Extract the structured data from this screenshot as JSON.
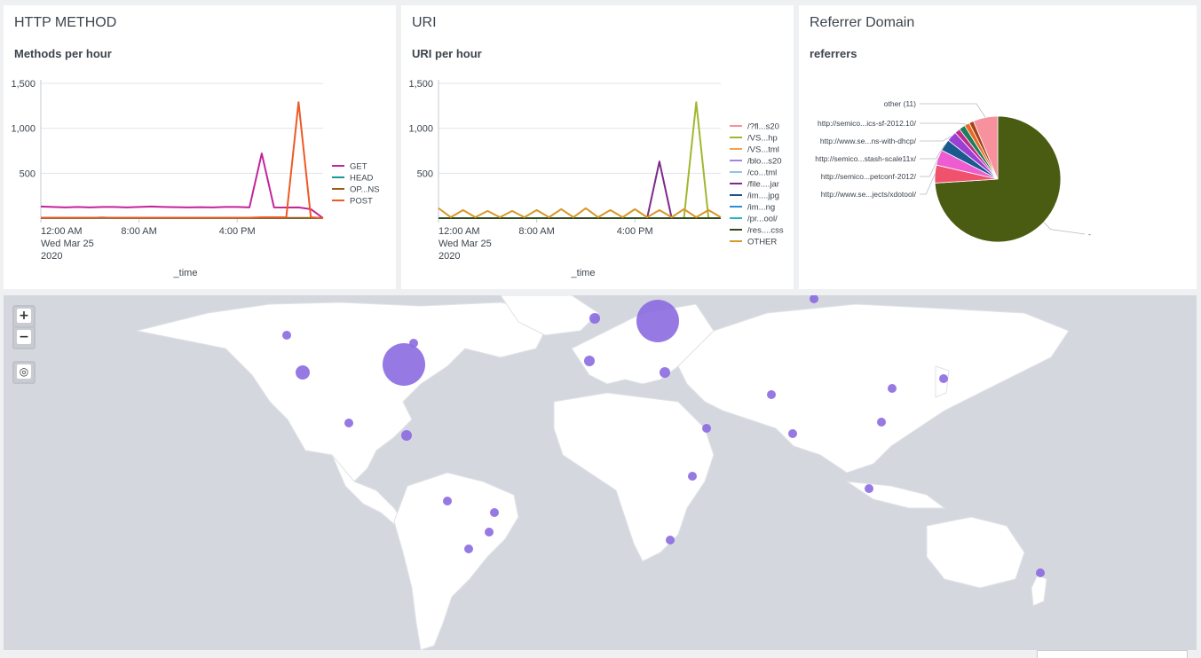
{
  "panels": {
    "methods": {
      "title": "HTTP METHOD",
      "subtitle": "Methods per hour",
      "xlabel": "_time",
      "xticks": [
        "12:00 AM",
        "8:00 AM",
        "4:00 PM"
      ],
      "xdate": [
        "Wed Mar 25",
        "2020"
      ],
      "yticks": [
        "1,500",
        "1,000",
        "500"
      ]
    },
    "uri": {
      "title": "URI",
      "subtitle": "URI per hour",
      "xlabel": "_time",
      "xticks": [
        "12:00 AM",
        "8:00 AM",
        "4:00 PM"
      ],
      "xdate": [
        "Wed Mar 25",
        "2020"
      ],
      "yticks": [
        "1,500",
        "1,000",
        "500"
      ]
    },
    "referrer": {
      "title": "Referrer Domain",
      "subtitle": "referrers"
    }
  },
  "chart_data": [
    {
      "type": "line",
      "title": "Methods per hour",
      "xlabel": "_time",
      "ylim": [
        0,
        1500
      ],
      "x_hours": [
        0,
        1,
        2,
        3,
        4,
        5,
        6,
        7,
        8,
        9,
        10,
        11,
        12,
        13,
        14,
        15,
        16,
        17,
        18,
        19,
        20,
        21,
        22,
        23
      ],
      "series": [
        {
          "name": "GET",
          "color": "#c4239a",
          "values": [
            130,
            125,
            120,
            125,
            120,
            125,
            125,
            120,
            125,
            130,
            125,
            122,
            120,
            122,
            120,
            125,
            125,
            120,
            720,
            120,
            118,
            120,
            100,
            0
          ]
        },
        {
          "name": "HEAD",
          "color": "#159c8f",
          "values": [
            0,
            0,
            0,
            0,
            0,
            0,
            0,
            0,
            0,
            0,
            0,
            0,
            0,
            0,
            0,
            0,
            0,
            0,
            0,
            0,
            0,
            0,
            0,
            0
          ]
        },
        {
          "name": "OP...NS",
          "color": "#9c5a1c",
          "values": [
            2,
            2,
            2,
            2,
            2,
            8,
            2,
            2,
            2,
            2,
            2,
            2,
            2,
            2,
            2,
            2,
            2,
            2,
            2,
            2,
            2,
            2,
            2,
            2
          ]
        },
        {
          "name": "POST",
          "color": "#ec5a25",
          "values": [
            5,
            5,
            5,
            5,
            5,
            5,
            5,
            5,
            5,
            5,
            5,
            5,
            5,
            5,
            5,
            5,
            5,
            5,
            10,
            10,
            10,
            1290,
            10,
            0
          ]
        }
      ]
    },
    {
      "type": "line",
      "title": "URI per hour",
      "xlabel": "_time",
      "ylim": [
        0,
        1500
      ],
      "x_hours": [
        0,
        1,
        2,
        3,
        4,
        5,
        6,
        7,
        8,
        9,
        10,
        11,
        12,
        13,
        14,
        15,
        16,
        17,
        18,
        19,
        20,
        21,
        22,
        23
      ],
      "series": [
        {
          "name": "/?fl...s20",
          "color": "#f7919e",
          "values": [
            0,
            0,
            0,
            0,
            0,
            0,
            0,
            0,
            0,
            0,
            0,
            0,
            0,
            0,
            0,
            0,
            0,
            0,
            0,
            0,
            0,
            0,
            0,
            0
          ]
        },
        {
          "name": "/VS...hp",
          "color": "#a2b72f",
          "values": [
            0,
            0,
            0,
            0,
            0,
            0,
            0,
            0,
            0,
            0,
            0,
            0,
            0,
            0,
            0,
            0,
            0,
            0,
            0,
            0,
            0,
            1290,
            0,
            0
          ]
        },
        {
          "name": "/VS...tml",
          "color": "#f8a14a",
          "values": [
            0,
            0,
            0,
            0,
            0,
            0,
            0,
            0,
            0,
            0,
            0,
            0,
            0,
            0,
            0,
            0,
            0,
            0,
            0,
            0,
            0,
            0,
            0,
            0
          ]
        },
        {
          "name": "/blo...s20",
          "color": "#a283e6",
          "values": [
            0,
            0,
            0,
            0,
            0,
            0,
            0,
            0,
            0,
            0,
            0,
            0,
            0,
            0,
            0,
            0,
            0,
            0,
            0,
            0,
            0,
            0,
            0,
            0
          ]
        },
        {
          "name": "/co...tml",
          "color": "#8cc6e0",
          "values": [
            0,
            0,
            0,
            0,
            0,
            0,
            0,
            0,
            0,
            0,
            0,
            0,
            0,
            0,
            0,
            0,
            0,
            0,
            0,
            0,
            0,
            0,
            0,
            0
          ]
        },
        {
          "name": "/file....jar",
          "color": "#7c2a8a",
          "values": [
            0,
            0,
            0,
            0,
            0,
            0,
            0,
            0,
            0,
            0,
            0,
            0,
            0,
            0,
            0,
            0,
            0,
            0,
            630,
            0,
            0,
            0,
            0,
            0
          ]
        },
        {
          "name": "/im....jpg",
          "color": "#1d4f91",
          "values": [
            0,
            0,
            0,
            0,
            0,
            0,
            0,
            0,
            0,
            0,
            0,
            0,
            0,
            0,
            0,
            0,
            0,
            0,
            0,
            0,
            0,
            0,
            0,
            0
          ]
        },
        {
          "name": "/im...ng",
          "color": "#2a8fd4",
          "values": [
            0,
            0,
            0,
            0,
            0,
            0,
            0,
            0,
            0,
            0,
            0,
            0,
            0,
            0,
            0,
            0,
            0,
            0,
            0,
            0,
            0,
            0,
            0,
            0
          ]
        },
        {
          "name": "/pr...ool/",
          "color": "#21b9bc",
          "values": [
            0,
            0,
            0,
            0,
            0,
            0,
            0,
            0,
            0,
            0,
            0,
            0,
            0,
            0,
            0,
            0,
            0,
            0,
            0,
            0,
            0,
            0,
            0,
            0
          ]
        },
        {
          "name": "/res....css",
          "color": "#2c4a1f",
          "values": [
            0,
            0,
            0,
            0,
            0,
            0,
            0,
            0,
            0,
            0,
            0,
            0,
            0,
            0,
            0,
            0,
            0,
            0,
            0,
            0,
            0,
            0,
            0,
            0
          ]
        },
        {
          "name": "OTHER",
          "color": "#d8982a",
          "values": [
            110,
            10,
            90,
            10,
            80,
            10,
            80,
            10,
            90,
            10,
            100,
            10,
            110,
            10,
            90,
            10,
            100,
            10,
            90,
            10,
            100,
            10,
            90,
            10
          ]
        }
      ]
    },
    {
      "type": "pie",
      "title": "referrers",
      "slices": [
        {
          "label": "-",
          "value": 74,
          "color": "#4a5c12"
        },
        {
          "label": "http://www.se...jects/xdotool/",
          "value": 4.6,
          "color": "#f0526e"
        },
        {
          "label": "http://semico...petconf-2012/",
          "value": 4.0,
          "color": "#ef5bd1"
        },
        {
          "label": "http://semico...stash-scale11x/",
          "value": 3.0,
          "color": "#1b5a8e"
        },
        {
          "label": "http://www.se...ns-with-dhcp/",
          "value": 2.6,
          "color": "#9b3fd4"
        },
        {
          "label": "",
          "value": 1.4,
          "color": "#bf2d8c"
        },
        {
          "label": "",
          "value": 1.6,
          "color": "#1f7d5a"
        },
        {
          "label": "http://semico...ics-sf-2012.10/",
          "value": 1.3,
          "color": "#ea6a24"
        },
        {
          "label": "",
          "value": 1.2,
          "color": "#a8431c"
        },
        {
          "label": "other (11)",
          "value": 6.3,
          "color": "#f7919e"
        }
      ]
    }
  ],
  "map": {
    "zoom_in": "+",
    "zoom_out": "−",
    "marker_color": "#8b6ae0",
    "land_color": "#ffffff",
    "water_color": "#d4d8de"
  }
}
